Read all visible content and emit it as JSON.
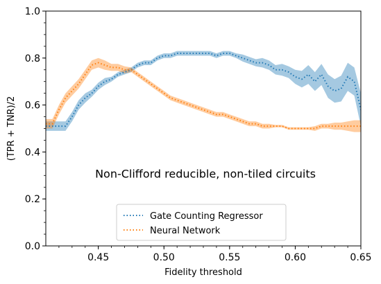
{
  "chart_data": {
    "type": "line",
    "xlabel": "Fidelity threshold",
    "ylabel": "(TPR + TNR)/2",
    "xlim": [
      0.41,
      0.65
    ],
    "ylim": [
      0.0,
      1.0
    ],
    "xticks": [
      "0.45",
      "0.50",
      "0.55",
      "0.60",
      "0.65"
    ],
    "yticks": [
      "0.0",
      "0.2",
      "0.4",
      "0.6",
      "0.8",
      "1.0"
    ],
    "annotation": "Non-Clifford reducible, non-tiled circuits",
    "legend_position": "lower-center",
    "grid": false,
    "series": [
      {
        "name": "Gate Counting Regressor",
        "color": "#1f77b4",
        "line_style": "dotted",
        "x": [
          0.41,
          0.415,
          0.42,
          0.425,
          0.43,
          0.435,
          0.44,
          0.445,
          0.45,
          0.455,
          0.46,
          0.465,
          0.47,
          0.475,
          0.48,
          0.485,
          0.49,
          0.495,
          0.5,
          0.505,
          0.51,
          0.515,
          0.52,
          0.525,
          0.53,
          0.535,
          0.54,
          0.545,
          0.55,
          0.555,
          0.56,
          0.565,
          0.57,
          0.575,
          0.58,
          0.585,
          0.59,
          0.595,
          0.6,
          0.605,
          0.61,
          0.615,
          0.62,
          0.625,
          0.63,
          0.635,
          0.64,
          0.645,
          0.65
        ],
        "y": [
          0.51,
          0.51,
          0.51,
          0.51,
          0.55,
          0.6,
          0.63,
          0.65,
          0.68,
          0.7,
          0.71,
          0.73,
          0.74,
          0.75,
          0.77,
          0.78,
          0.78,
          0.8,
          0.81,
          0.81,
          0.82,
          0.82,
          0.82,
          0.82,
          0.82,
          0.82,
          0.81,
          0.82,
          0.82,
          0.81,
          0.8,
          0.79,
          0.78,
          0.78,
          0.77,
          0.75,
          0.75,
          0.74,
          0.72,
          0.71,
          0.73,
          0.7,
          0.73,
          0.68,
          0.66,
          0.67,
          0.72,
          0.7,
          0.58
        ],
        "band": [
          0.02,
          0.02,
          0.02,
          0.02,
          0.02,
          0.02,
          0.02,
          0.015,
          0.015,
          0.015,
          0.01,
          0.01,
          0.01,
          0.01,
          0.01,
          0.01,
          0.01,
          0.01,
          0.01,
          0.01,
          0.01,
          0.01,
          0.01,
          0.01,
          0.01,
          0.01,
          0.01,
          0.01,
          0.01,
          0.01,
          0.015,
          0.015,
          0.015,
          0.02,
          0.02,
          0.02,
          0.025,
          0.025,
          0.03,
          0.035,
          0.04,
          0.04,
          0.045,
          0.05,
          0.05,
          0.055,
          0.06,
          0.06,
          0.07
        ]
      },
      {
        "name": "Neural Network",
        "color": "#ff7f0e",
        "line_style": "dotted",
        "x": [
          0.41,
          0.415,
          0.42,
          0.425,
          0.43,
          0.435,
          0.44,
          0.445,
          0.45,
          0.455,
          0.46,
          0.465,
          0.47,
          0.475,
          0.48,
          0.485,
          0.49,
          0.495,
          0.5,
          0.505,
          0.51,
          0.515,
          0.52,
          0.525,
          0.53,
          0.535,
          0.54,
          0.545,
          0.55,
          0.555,
          0.56,
          0.565,
          0.57,
          0.575,
          0.58,
          0.585,
          0.59,
          0.595,
          0.6,
          0.605,
          0.61,
          0.615,
          0.62,
          0.625,
          0.63,
          0.635,
          0.64,
          0.645,
          0.65
        ],
        "y": [
          0.52,
          0.52,
          0.58,
          0.63,
          0.66,
          0.69,
          0.73,
          0.77,
          0.78,
          0.77,
          0.76,
          0.76,
          0.75,
          0.75,
          0.73,
          0.71,
          0.69,
          0.67,
          0.65,
          0.63,
          0.62,
          0.61,
          0.6,
          0.59,
          0.58,
          0.57,
          0.56,
          0.56,
          0.55,
          0.54,
          0.53,
          0.52,
          0.52,
          0.51,
          0.51,
          0.51,
          0.51,
          0.5,
          0.5,
          0.5,
          0.5,
          0.5,
          0.51,
          0.51,
          0.51,
          0.51,
          0.51,
          0.51,
          0.51
        ],
        "band": [
          0.02,
          0.02,
          0.02,
          0.02,
          0.02,
          0.02,
          0.02,
          0.02,
          0.02,
          0.02,
          0.015,
          0.015,
          0.015,
          0.01,
          0.01,
          0.01,
          0.01,
          0.01,
          0.01,
          0.01,
          0.01,
          0.01,
          0.01,
          0.01,
          0.01,
          0.01,
          0.01,
          0.01,
          0.01,
          0.01,
          0.01,
          0.01,
          0.01,
          0.01,
          0.01,
          0.005,
          0.005,
          0.005,
          0.005,
          0.005,
          0.005,
          0.01,
          0.01,
          0.01,
          0.015,
          0.015,
          0.02,
          0.025,
          0.025
        ]
      }
    ]
  }
}
